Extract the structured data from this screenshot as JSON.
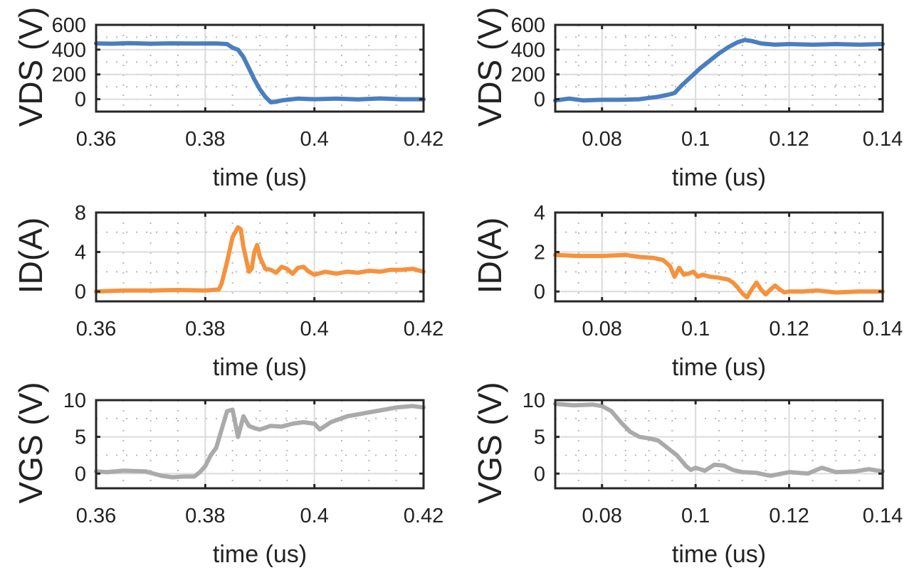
{
  "chart_data": [
    {
      "id": "vds-turnon",
      "type": "line",
      "title": "",
      "xlabel": "time (us)",
      "ylabel": "VDS (V)",
      "xlim": [
        0.36,
        0.42
      ],
      "ylim": [
        -100,
        600
      ],
      "xticks": [
        0.36,
        0.38,
        0.4,
        0.42
      ],
      "xtick_labels": [
        "0.36",
        "0.38",
        "0.4",
        "0.42"
      ],
      "yticks": [
        0,
        200,
        400,
        600
      ],
      "ytick_labels": [
        "0",
        "200",
        "400",
        "600"
      ],
      "grid": true,
      "series": [
        {
          "name": "VDS",
          "color": "#4a7ebf",
          "x": [
            0.36,
            0.363,
            0.366,
            0.37,
            0.374,
            0.378,
            0.382,
            0.384,
            0.385,
            0.386,
            0.387,
            0.388,
            0.389,
            0.39,
            0.391,
            0.392,
            0.393,
            0.394,
            0.395,
            0.397,
            0.4,
            0.404,
            0.408,
            0.412,
            0.416,
            0.42
          ],
          "y": [
            450,
            448,
            452,
            448,
            451,
            449,
            450,
            445,
            415,
            400,
            340,
            250,
            160,
            80,
            20,
            -25,
            -20,
            -10,
            -5,
            5,
            0,
            5,
            -2,
            6,
            0,
            0
          ]
        }
      ]
    },
    {
      "id": "vds-turnoff",
      "type": "line",
      "title": "",
      "xlabel": "time (us)",
      "ylabel": "VDS (V)",
      "xlim": [
        0.07,
        0.14
      ],
      "ylim": [
        -100,
        600
      ],
      "xticks": [
        0.08,
        0.1,
        0.12,
        0.14
      ],
      "xtick_labels": [
        "0.08",
        "0.1",
        "0.12",
        "0.14"
      ],
      "yticks": [
        0,
        200,
        400,
        600
      ],
      "ytick_labels": [
        "0",
        "200",
        "400",
        "600"
      ],
      "grid": true,
      "series": [
        {
          "name": "VDS",
          "color": "#4a7ebf",
          "x": [
            0.07,
            0.073,
            0.076,
            0.08,
            0.084,
            0.088,
            0.09,
            0.092,
            0.094,
            0.0955,
            0.097,
            0.099,
            0.101,
            0.103,
            0.105,
            0.107,
            0.109,
            0.1105,
            0.112,
            0.114,
            0.117,
            0.12,
            0.125,
            0.13,
            0.135,
            0.14
          ],
          "y": [
            -10,
            5,
            -10,
            -5,
            -5,
            0,
            10,
            20,
            35,
            50,
            110,
            180,
            250,
            310,
            370,
            420,
            460,
            478,
            470,
            450,
            440,
            445,
            440,
            445,
            440,
            445
          ]
        }
      ]
    },
    {
      "id": "id-turnon",
      "type": "line",
      "title": "",
      "xlabel": "time (us)",
      "ylabel": "ID(A)",
      "xlim": [
        0.36,
        0.42
      ],
      "ylim": [
        -1,
        8
      ],
      "xticks": [
        0.36,
        0.38,
        0.4,
        0.42
      ],
      "xtick_labels": [
        "0.36",
        "0.38",
        "0.4",
        "0.42"
      ],
      "yticks": [
        0,
        4,
        8
      ],
      "ytick_labels": [
        "0",
        "4",
        "8"
      ],
      "grid": true,
      "series": [
        {
          "name": "ID",
          "color": "#f5923e",
          "x": [
            0.36,
            0.365,
            0.37,
            0.375,
            0.38,
            0.3825,
            0.383,
            0.384,
            0.385,
            0.386,
            0.3865,
            0.387,
            0.388,
            0.3885,
            0.389,
            0.3895,
            0.39,
            0.391,
            0.392,
            0.393,
            0.394,
            0.395,
            0.396,
            0.397,
            0.398,
            0.399,
            0.4,
            0.402,
            0.404,
            0.406,
            0.408,
            0.41,
            0.412,
            0.414,
            0.416,
            0.418,
            0.42
          ],
          "y": [
            0,
            0.1,
            0.1,
            0.15,
            0.1,
            0.2,
            0.8,
            3.0,
            5.5,
            6.5,
            6.3,
            4.5,
            2.0,
            2.3,
            4.0,
            4.7,
            3.5,
            2.3,
            2.2,
            1.9,
            2.5,
            2.3,
            1.8,
            2.4,
            2.5,
            2.0,
            1.7,
            2.0,
            1.8,
            2.0,
            1.9,
            2.1,
            2.0,
            2.2,
            2.2,
            2.3,
            2.0
          ]
        }
      ]
    },
    {
      "id": "id-turnoff",
      "type": "line",
      "title": "",
      "xlabel": "time (us)",
      "ylabel": "ID(A)",
      "xlim": [
        0.07,
        0.14
      ],
      "ylim": [
        -0.5,
        4
      ],
      "xticks": [
        0.08,
        0.1,
        0.12,
        0.14
      ],
      "xtick_labels": [
        "0.08",
        "0.1",
        "0.12",
        "0.14"
      ],
      "yticks": [
        0,
        2,
        4
      ],
      "ytick_labels": [
        "0",
        "2",
        "4"
      ],
      "grid": true,
      "series": [
        {
          "name": "ID",
          "color": "#f5923e",
          "x": [
            0.07,
            0.075,
            0.08,
            0.085,
            0.088,
            0.091,
            0.093,
            0.0945,
            0.0955,
            0.0965,
            0.0975,
            0.0985,
            0.0995,
            0.1005,
            0.1015,
            0.103,
            0.105,
            0.107,
            0.108,
            0.109,
            0.11,
            0.111,
            0.112,
            0.113,
            0.114,
            0.115,
            0.116,
            0.117,
            0.118,
            0.119,
            0.12,
            0.123,
            0.126,
            0.13,
            0.135,
            0.14
          ],
          "y": [
            1.85,
            1.8,
            1.8,
            1.85,
            1.75,
            1.7,
            1.6,
            1.3,
            0.75,
            1.2,
            0.85,
            0.9,
            1.0,
            0.75,
            0.85,
            0.75,
            0.7,
            0.6,
            0.45,
            0.2,
            -0.1,
            -0.3,
            0.1,
            0.45,
            0.1,
            -0.15,
            0.1,
            0.3,
            0.1,
            -0.05,
            0.0,
            0.0,
            0.05,
            -0.05,
            0.0,
            0.0
          ]
        }
      ]
    },
    {
      "id": "vgs-turnon",
      "type": "line",
      "title": "",
      "xlabel": "time (us)",
      "ylabel": "VGS (V)",
      "xlim": [
        0.36,
        0.42
      ],
      "ylim": [
        -2,
        10
      ],
      "xticks": [
        0.36,
        0.38,
        0.4,
        0.42
      ],
      "xtick_labels": [
        "0.36",
        "0.38",
        "0.4",
        "0.42"
      ],
      "yticks": [
        0,
        5,
        10
      ],
      "ytick_labels": [
        "0",
        "5",
        "10"
      ],
      "grid": true,
      "series": [
        {
          "name": "VGS",
          "color": "#aaaaaa",
          "x": [
            0.36,
            0.362,
            0.365,
            0.369,
            0.372,
            0.374,
            0.376,
            0.378,
            0.379,
            0.38,
            0.381,
            0.382,
            0.383,
            0.384,
            0.385,
            0.386,
            0.387,
            0.388,
            0.389,
            0.39,
            0.392,
            0.394,
            0.396,
            0.398,
            0.4,
            0.401,
            0.403,
            0.406,
            0.409,
            0.412,
            0.415,
            0.418,
            0.42
          ],
          "y": [
            0.3,
            0.2,
            0.4,
            0.3,
            -0.3,
            -0.5,
            -0.4,
            -0.4,
            0.2,
            1.0,
            2.5,
            3.5,
            6.0,
            8.5,
            8.7,
            5.0,
            7.8,
            6.5,
            6.2,
            6.0,
            6.5,
            6.4,
            6.8,
            7.0,
            6.8,
            6.0,
            7.0,
            7.8,
            8.2,
            8.6,
            9.0,
            9.2,
            9.0
          ]
        }
      ]
    },
    {
      "id": "vgs-turnoff",
      "type": "line",
      "title": "",
      "xlabel": "time (us)",
      "ylabel": "VGS (V)",
      "xlim": [
        0.07,
        0.14
      ],
      "ylim": [
        -2,
        10
      ],
      "xticks": [
        0.08,
        0.1,
        0.12,
        0.14
      ],
      "xtick_labels": [
        "0.08",
        "0.1",
        "0.12",
        "0.14"
      ],
      "yticks": [
        0,
        5,
        10
      ],
      "ytick_labels": [
        "0",
        "5",
        "10"
      ],
      "grid": true,
      "series": [
        {
          "name": "VGS",
          "color": "#aaaaaa",
          "x": [
            0.07,
            0.074,
            0.078,
            0.08,
            0.082,
            0.084,
            0.086,
            0.088,
            0.09,
            0.092,
            0.094,
            0.096,
            0.098,
            0.099,
            0.1,
            0.102,
            0.104,
            0.106,
            0.108,
            0.11,
            0.113,
            0.116,
            0.12,
            0.124,
            0.127,
            0.13,
            0.134,
            0.137,
            0.14
          ],
          "y": [
            9.5,
            9.3,
            9.4,
            9.2,
            8.5,
            7.0,
            5.7,
            5.0,
            4.8,
            4.5,
            3.5,
            2.5,
            1.0,
            0.5,
            0.8,
            0.4,
            1.2,
            1.1,
            0.5,
            0.2,
            0.1,
            -0.3,
            0.2,
            0.0,
            0.8,
            0.2,
            0.3,
            0.6,
            0.3
          ]
        }
      ]
    }
  ]
}
